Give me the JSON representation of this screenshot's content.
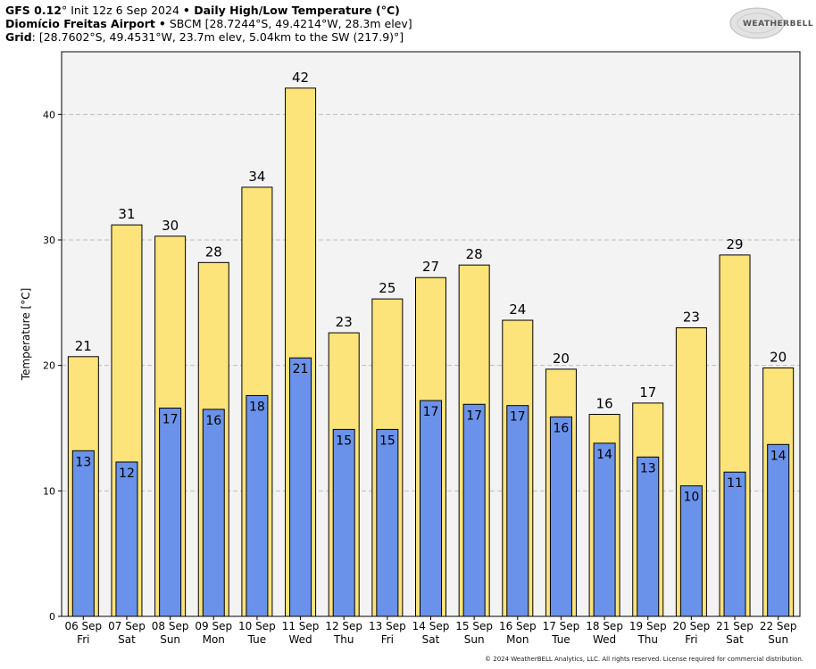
{
  "header": {
    "model": "GFS 0.12",
    "model_deg": "°",
    "init": " Init 12z 6 Sep 2024 ",
    "bullet": "•",
    "product": " Daily High/Low Temperature (°C)",
    "station_name": "Diomício Freitas Airport",
    "station_info": " SBCM [28.7244°S, 49.4214°W, 28.3m elev]",
    "grid_label": "Grid",
    "grid_info": ": [28.7602°S, 49.4531°W, 23.7m elev, 5.04km to the SW (217.9)°]"
  },
  "logo_text": "WEATHERBELL",
  "footer": "© 2024 WeatherBELL Analytics, LLC. All rights reserved. License required for commercial distribution.",
  "colors": {
    "high_bar": "#fce37a",
    "low_bar": "#6a92ea",
    "plot_bg": "#f3f3f3",
    "grid": "#bdbdbd"
  },
  "chart_data": {
    "type": "bar",
    "ylabel": "Temperature [°C]",
    "ylim": [
      0,
      45
    ],
    "yticks": [
      0,
      10,
      20,
      30,
      40
    ],
    "grid": true,
    "categories": [
      "06 Sep",
      "07 Sep",
      "08 Sep",
      "09 Sep",
      "10 Sep",
      "11 Sep",
      "12 Sep",
      "13 Sep",
      "14 Sep",
      "15 Sep",
      "16 Sep",
      "17 Sep",
      "18 Sep",
      "19 Sep",
      "20 Sep",
      "21 Sep",
      "22 Sep"
    ],
    "weekdays": [
      "Fri",
      "Sat",
      "Sun",
      "Mon",
      "Tue",
      "Wed",
      "Thu",
      "Fri",
      "Sat",
      "Sun",
      "Mon",
      "Tue",
      "Wed",
      "Thu",
      "Fri",
      "Sat",
      "Sun"
    ],
    "series": [
      {
        "name": "High",
        "values": [
          20.7,
          31.2,
          30.3,
          28.2,
          34.2,
          42.1,
          22.6,
          25.3,
          27.0,
          28.0,
          23.6,
          19.7,
          16.1,
          17.0,
          23.0,
          28.8,
          19.8
        ],
        "labels": [
          "21",
          "31",
          "30",
          "28",
          "34",
          "42",
          "23",
          "25",
          "27",
          "28",
          "24",
          "20",
          "16",
          "17",
          "23",
          "29",
          "20"
        ]
      },
      {
        "name": "Low",
        "values": [
          13.2,
          12.3,
          16.6,
          16.5,
          17.6,
          20.6,
          14.9,
          14.9,
          17.2,
          16.9,
          16.8,
          15.9,
          13.8,
          12.7,
          10.4,
          11.5,
          13.7
        ],
        "labels": [
          "13",
          "12",
          "17",
          "16",
          "18",
          "21",
          "15",
          "15",
          "17",
          "17",
          "17",
          "16",
          "14",
          "13",
          "10",
          "11",
          "14"
        ]
      }
    ]
  }
}
